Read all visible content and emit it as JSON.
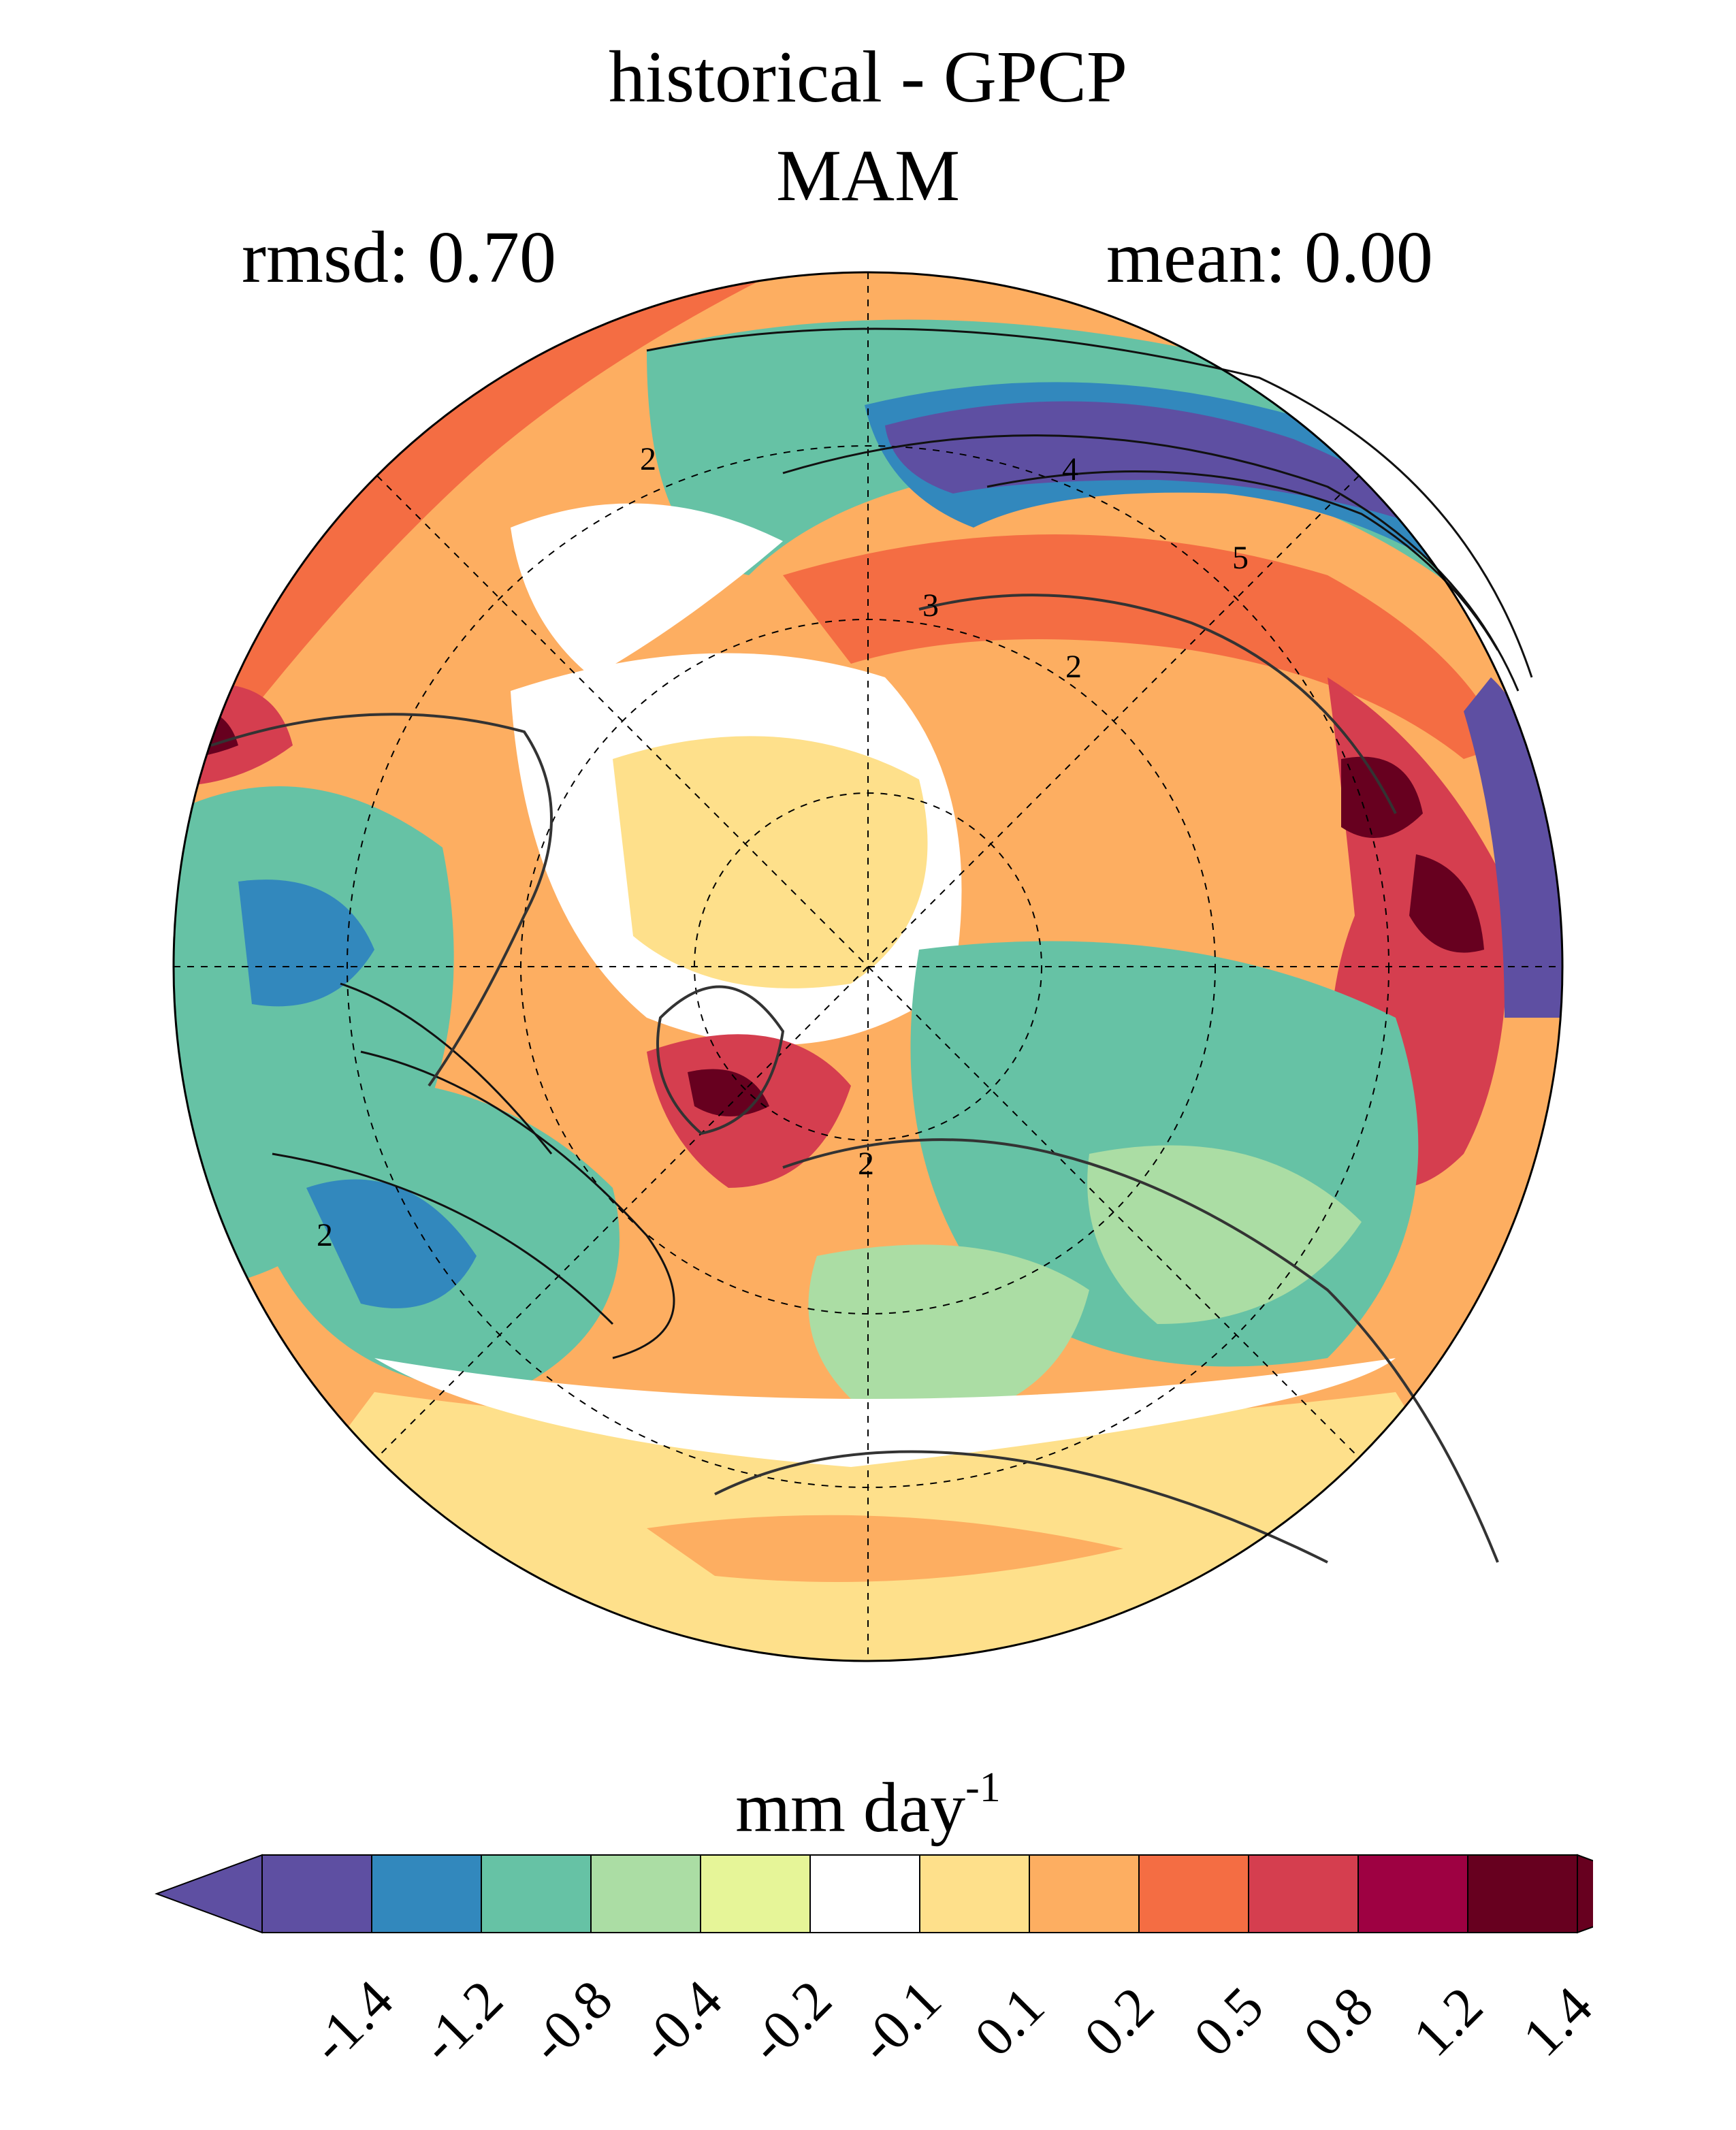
{
  "title": {
    "line1": "historical - GPCP",
    "line2": "MAM"
  },
  "stats": {
    "rmsd": "rmsd: 0.70",
    "mean": "mean: 0.00"
  },
  "map": {
    "projection": "north-polar-stereographic",
    "contour_labels": [
      "2",
      "4",
      "5",
      "3",
      "2",
      "2",
      "2"
    ]
  },
  "colorbar": {
    "title": "mm day",
    "title_exponent": "-1",
    "colors": [
      "#5e4fa2",
      "#3288bd",
      "#66c2a5",
      "#abdda4",
      "#e6f598",
      "#ffffff",
      "#fee08b",
      "#fdae61",
      "#f46d43",
      "#d53e4f",
      "#9e0142",
      "#67001f"
    ],
    "end_colors": {
      "low": "#5e4fa2",
      "high": "#67001f"
    },
    "ticks": [
      "-1.4",
      "-1.2",
      "-0.8",
      "-0.4",
      "-0.2",
      "-0.1",
      "0.1",
      "0.2",
      "0.5",
      "0.8",
      "1.2",
      "1.4"
    ]
  }
}
